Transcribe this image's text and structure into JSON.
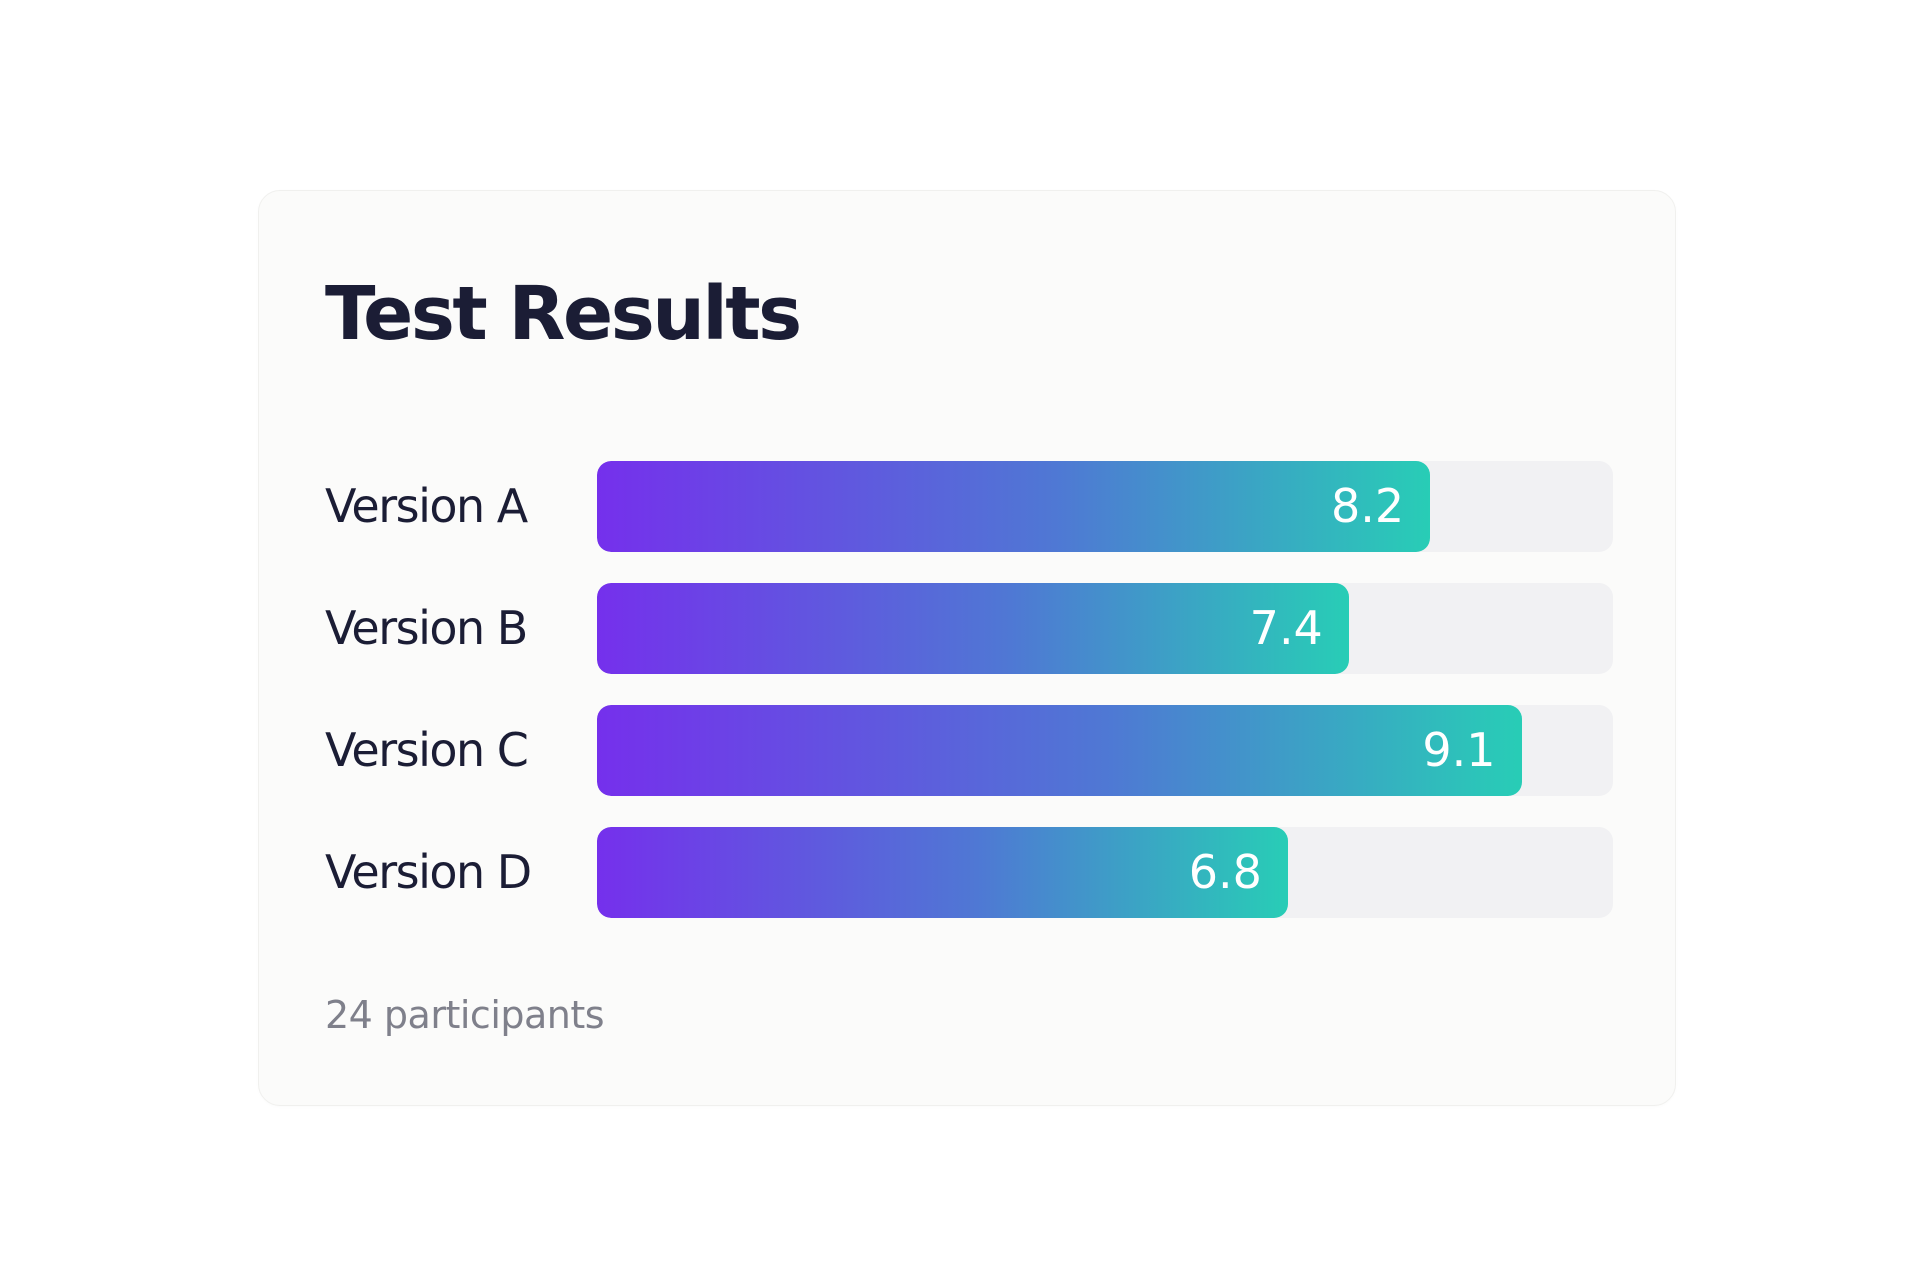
{
  "card": {
    "title": "Test Results",
    "footer": "24 participants"
  },
  "chart_data": {
    "type": "bar",
    "orientation": "horizontal",
    "title": "Test Results",
    "categories": [
      "Version A",
      "Version B",
      "Version C",
      "Version D"
    ],
    "values": [
      8.2,
      7.4,
      9.1,
      6.8
    ],
    "value_labels": [
      "8.2",
      "7.4",
      "9.1",
      "6.8"
    ],
    "xlim": [
      0,
      10
    ],
    "grid": false,
    "colors": {
      "gradient_start": "#7530ec",
      "gradient_mid": "#4f78d4",
      "gradient_end": "#28cdb6",
      "track": "#f1f1f3"
    }
  }
}
